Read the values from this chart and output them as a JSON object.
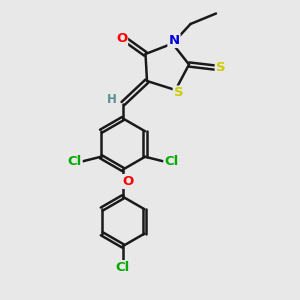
{
  "background_color": "#e8e8e8",
  "bond_color": "#1a1a1a",
  "atom_colors": {
    "O": "#ff0000",
    "N": "#0000dd",
    "S": "#cccc00",
    "Cl": "#00aa00",
    "H": "#5a9090",
    "C": "#1a1a1a"
  },
  "figsize": [
    3.0,
    3.0
  ],
  "dpi": 100,
  "xlim": [
    0,
    10
  ],
  "ylim": [
    0,
    10
  ]
}
